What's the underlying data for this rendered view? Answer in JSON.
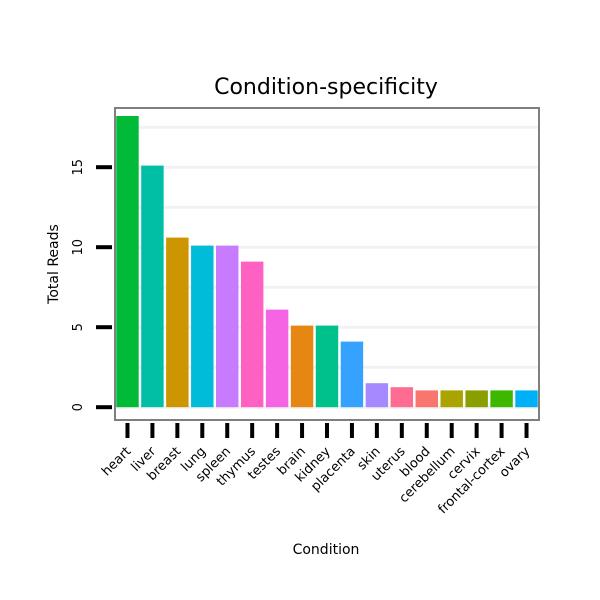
{
  "chart_data": {
    "type": "bar",
    "title": "Condition-specificity",
    "xlabel": "Condition",
    "ylabel": "Total Reads",
    "ylim": [
      -0.8,
      18.7
    ],
    "yticks": [
      0,
      5,
      10,
      15
    ],
    "grid": true,
    "categories": [
      "heart",
      "liver",
      "breast",
      "lung",
      "spleen",
      "thymus",
      "testes",
      "brain",
      "kidney",
      "placenta",
      "skin",
      "uterus",
      "blood",
      "cerebellum",
      "cervix",
      "frontal-cortex",
      "ovary"
    ],
    "values": [
      18.2,
      15.1,
      10.6,
      10.1,
      10.1,
      9.1,
      6.1,
      5.1,
      5.1,
      4.1,
      1.5,
      1.25,
      1.05,
      1.05,
      1.05,
      1.05,
      1.05
    ],
    "colors": [
      "#00BA38",
      "#00BFA5",
      "#CD9600",
      "#00BCD8",
      "#C77CFF",
      "#FF61C3",
      "#F564E3",
      "#E68613",
      "#00C08B",
      "#35A2FF",
      "#A58AFF",
      "#FF6C91",
      "#F8766D",
      "#ABA300",
      "#8B9E00",
      "#3DB700",
      "#00B0F6"
    ]
  }
}
